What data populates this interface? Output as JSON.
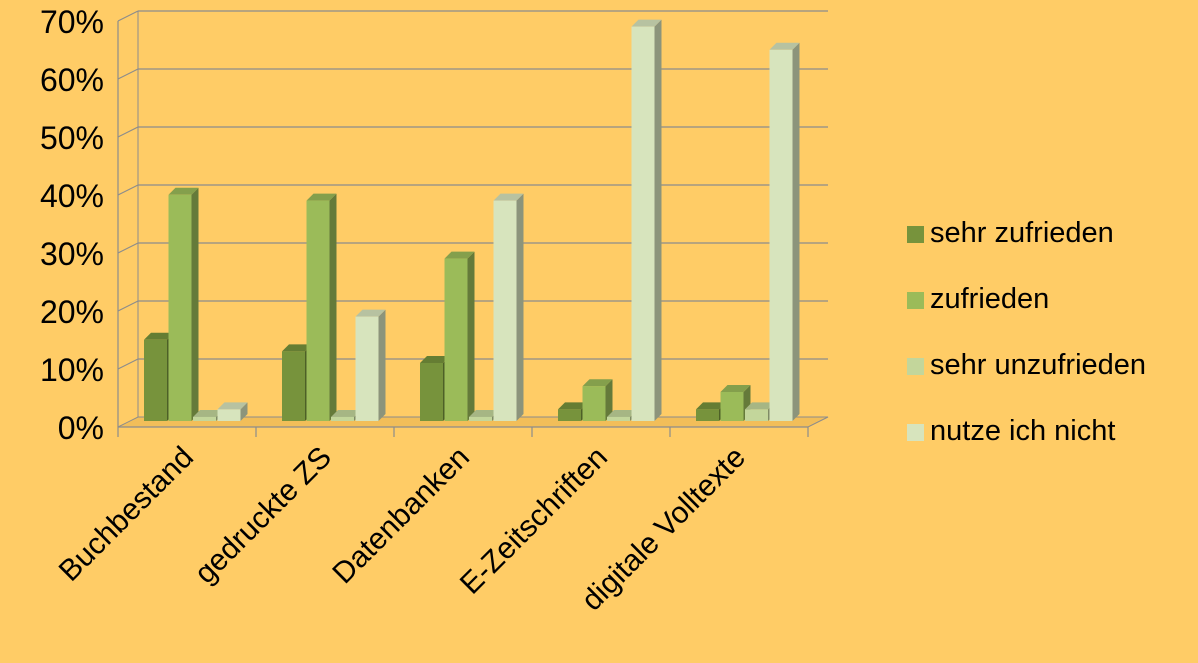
{
  "chart_data": {
    "type": "bar",
    "title": "",
    "xlabel": "",
    "ylabel": "",
    "ylim": [
      0,
      70
    ],
    "yticks": [
      "0%",
      "10%",
      "20%",
      "30%",
      "40%",
      "50%",
      "60%",
      "70%"
    ],
    "grid": true,
    "legend_position": "right",
    "categories": [
      "Buchbestand",
      "gedruckte ZS",
      "Datenbanken",
      "E-Zeitschriften",
      "digitale Volltexte"
    ],
    "series": [
      {
        "name": "sehr zufrieden",
        "color": "#77933C",
        "values": [
          14,
          12,
          10,
          2,
          2
        ]
      },
      {
        "name": "zufrieden",
        "color": "#9BBB59",
        "values": [
          39,
          38,
          28,
          6,
          5
        ]
      },
      {
        "name": "sehr unzufrieden",
        "color": "#C3D69B",
        "values": [
          0,
          0,
          0,
          0,
          2
        ]
      },
      {
        "name": "nutze ich nicht",
        "color": "#D7E4BD",
        "values": [
          2,
          18,
          38,
          68,
          64
        ]
      }
    ]
  }
}
